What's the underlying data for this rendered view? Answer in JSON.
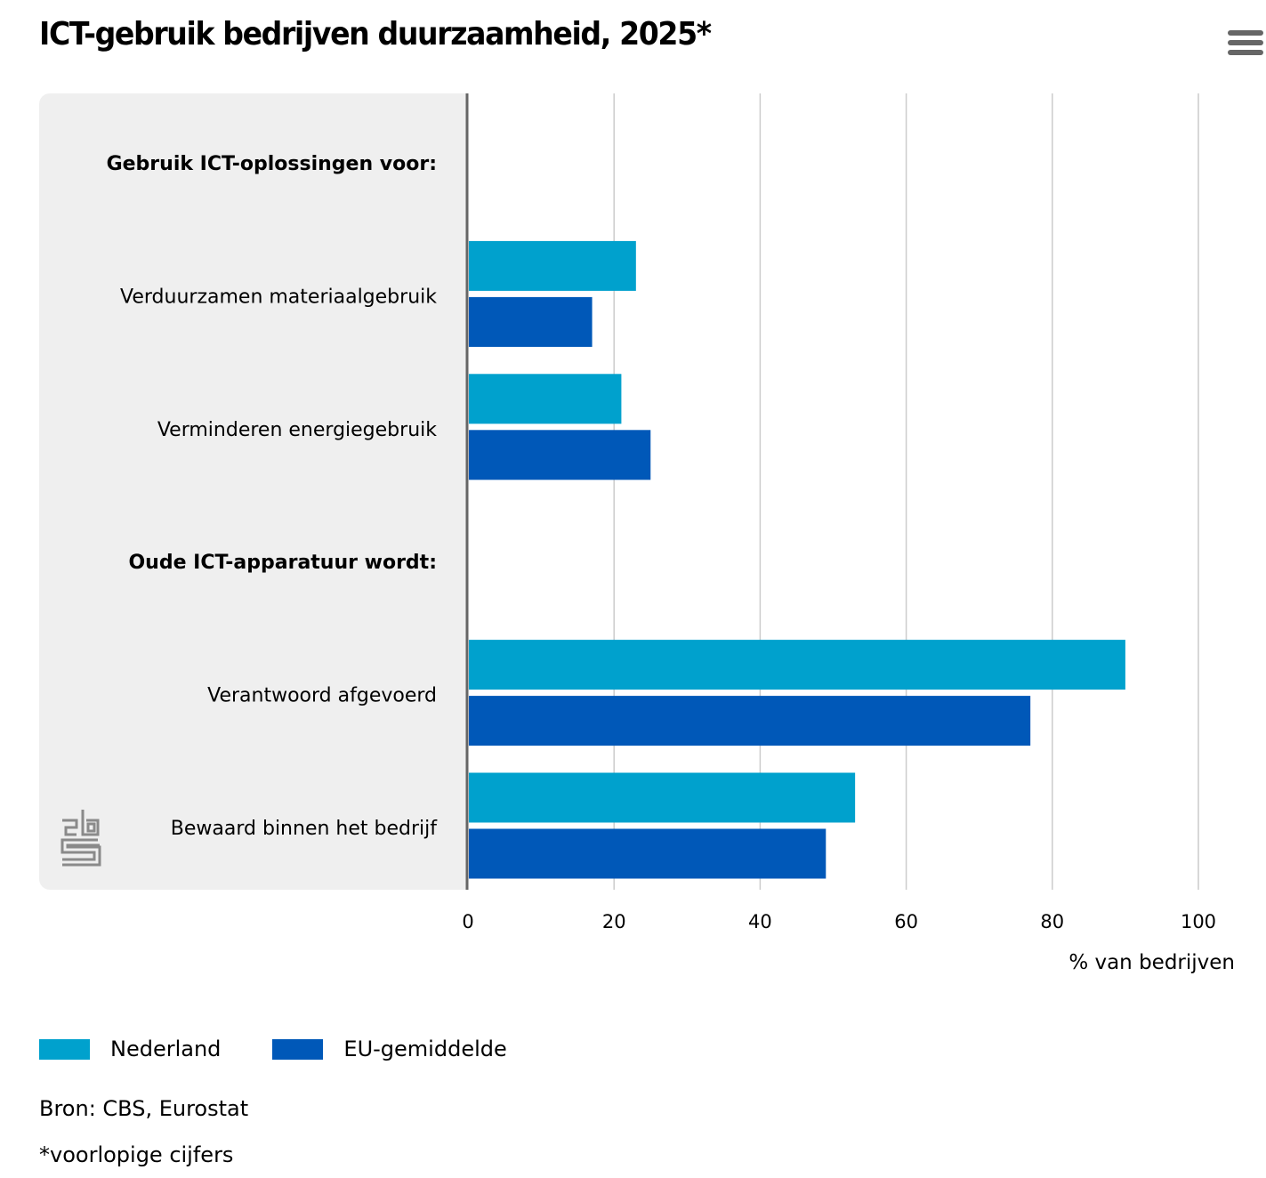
{
  "header": {
    "title": "ICT-gebruik bedrijven duurzaamheid, 2025*",
    "menu_icon": "hamburger-menu-icon"
  },
  "colors": {
    "nederland": "#00a1cd",
    "eu": "#0058b8",
    "panel": "#efefef",
    "axis": "#666666",
    "grid": "#cccccc"
  },
  "chart_data": {
    "type": "bar",
    "orientation": "horizontal",
    "title": "ICT-gebruik bedrijven duurzaamheid, 2025*",
    "xlabel": "% van bedrijven",
    "ylabel": "",
    "xlim": [
      0,
      100
    ],
    "xticks": [
      0,
      20,
      40,
      60,
      80,
      100
    ],
    "grid": true,
    "legend_position": "bottom-left",
    "rows": [
      {
        "label": "Gebruik ICT-oplossingen voor:",
        "is_header": true
      },
      {
        "label": "Verduurzamen materiaalgebruik",
        "is_header": false
      },
      {
        "label": "Verminderen energiegebruik",
        "is_header": false
      },
      {
        "label": "Oude ICT-apparatuur wordt:",
        "is_header": true
      },
      {
        "label": "Verantwoord afgevoerd",
        "is_header": false
      },
      {
        "label": "Bewaard binnen het bedrijf",
        "is_header": false
      }
    ],
    "categories": [
      "Verduurzamen materiaalgebruik",
      "Verminderen energiegebruik",
      "Verantwoord afgevoerd",
      "Bewaard binnen het bedrijf"
    ],
    "series": [
      {
        "name": "Nederland",
        "color": "#00a1cd",
        "values": [
          23,
          21,
          90,
          53
        ]
      },
      {
        "name": "EU-gemiddelde",
        "color": "#0058b8",
        "values": [
          17,
          25,
          77,
          49
        ]
      }
    ]
  },
  "legend": {
    "items": [
      {
        "label": "Nederland",
        "color": "#00a1cd"
      },
      {
        "label": "EU-gemiddelde",
        "color": "#0058b8"
      }
    ]
  },
  "footer": {
    "source": "Bron: CBS, Eurostat",
    "footnote": "*voorlopige cijfers"
  },
  "logo": {
    "name": "cbs-logo"
  }
}
